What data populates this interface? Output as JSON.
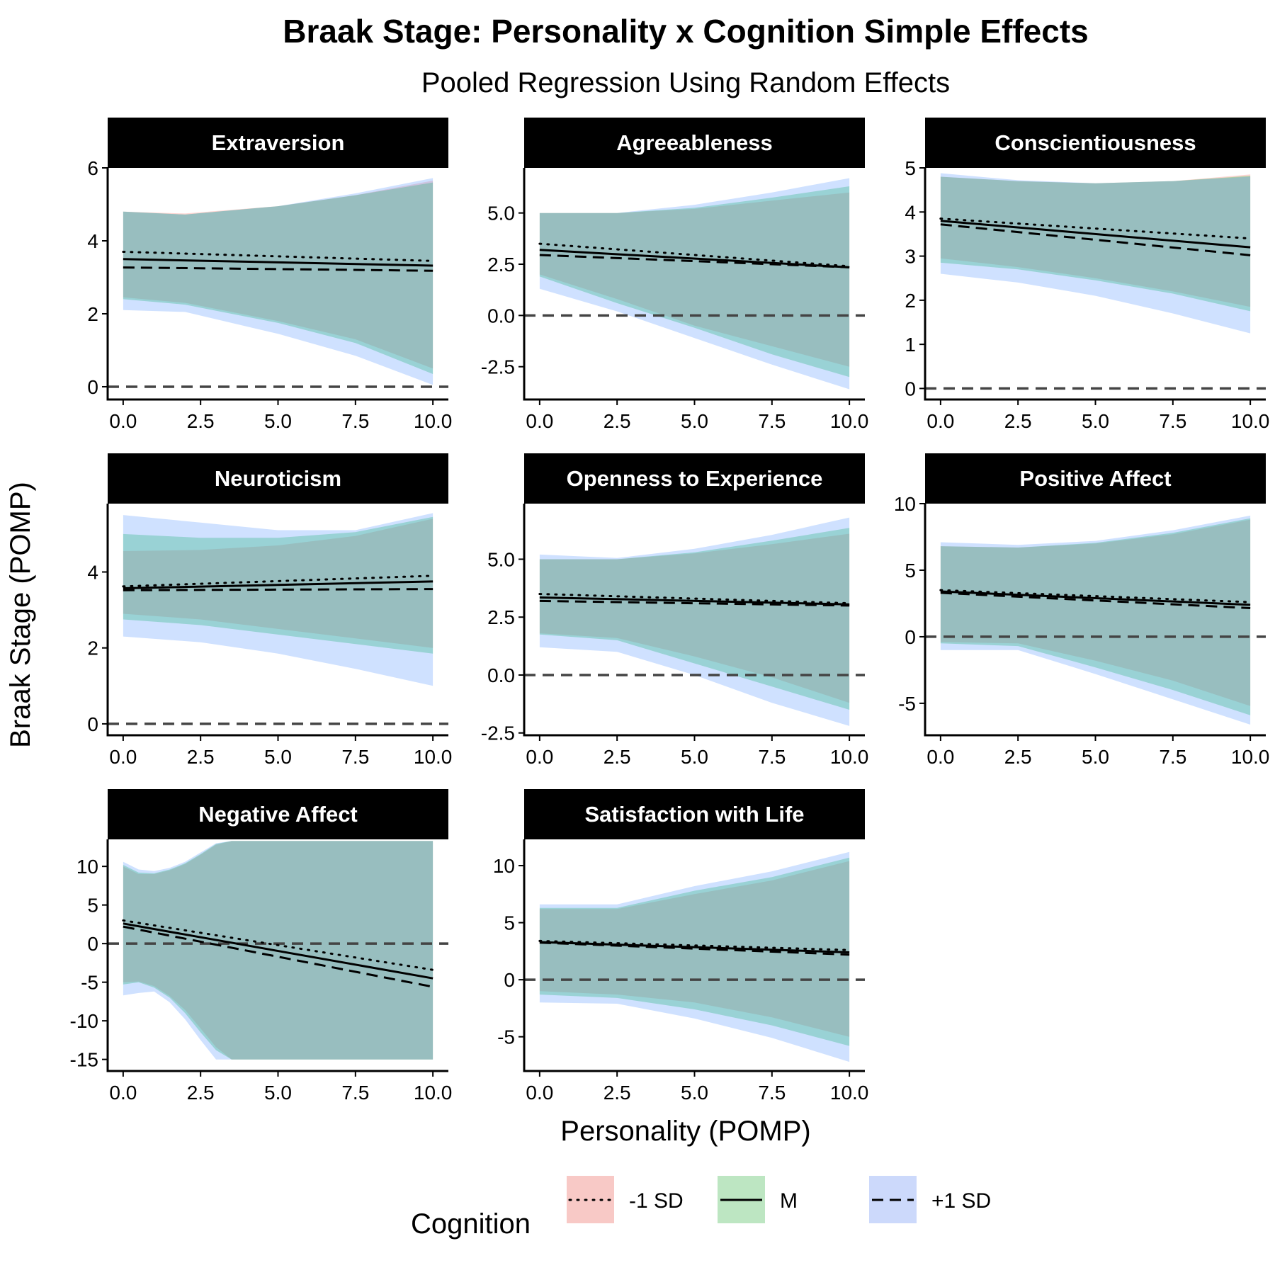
{
  "chart_data": {
    "type": "line",
    "title": "Braak Stage: Personality x Cognition Simple Effects",
    "subtitle": "Pooled Regression Using Random Effects",
    "xlabel": "Personality (POMP)",
    "ylabel": "Braak Stage (POMP)",
    "x_ticks": [
      "0.0",
      "2.5",
      "5.0",
      "7.5",
      "10.0"
    ],
    "x_tick_values": [
      0,
      2.5,
      5,
      7.5,
      10
    ],
    "xlim": [
      -0.5,
      10.5
    ],
    "reference_line_y": 0,
    "legend": {
      "title": "Cognition",
      "position": "bottom",
      "entries": [
        {
          "key": "minus1sd",
          "label": "-1 SD",
          "line": "dotted",
          "fill": "#f8c9c6"
        },
        {
          "key": "mean",
          "label": "M",
          "line": "solid",
          "fill": "#bde6c2"
        },
        {
          "key": "plus1sd",
          "label": "+1 SD",
          "line": "dashed",
          "fill": "#ccd9fb"
        }
      ]
    },
    "band_colors": {
      "minus1sd": "#f8766d",
      "mean": "#00ba38",
      "plus1sd": "#619cff"
    },
    "panels": [
      {
        "name": "Extraversion",
        "ylim": [
          -0.35,
          6.0
        ],
        "y_ticks": [
          "0",
          "2",
          "4",
          "6"
        ],
        "y_tick_values": [
          0,
          2,
          4,
          6
        ],
        "lines": {
          "minus1sd": [
            3.7,
            3.45
          ],
          "mean": [
            3.5,
            3.32
          ],
          "plus1sd": [
            3.27,
            3.18
          ]
        },
        "bands": {
          "minus1sd": {
            "x": [
              0,
              2,
              5,
              7.5,
              10
            ],
            "lower": [
              2.45,
              2.3,
              1.8,
              1.3,
              0.5
            ],
            "upper": [
              4.8,
              4.75,
              4.95,
              5.25,
              5.65
            ]
          },
          "mean": {
            "x": [
              0,
              2,
              5,
              7.5,
              10
            ],
            "lower": [
              2.4,
              2.25,
              1.75,
              1.2,
              0.35
            ],
            "upper": [
              4.8,
              4.72,
              4.95,
              5.25,
              5.6
            ]
          },
          "plus1sd": {
            "x": [
              0,
              2,
              5,
              7.5,
              10
            ],
            "lower": [
              2.1,
              2.05,
              1.45,
              0.85,
              0.05
            ],
            "upper": [
              4.8,
              4.72,
              4.95,
              5.3,
              5.72
            ]
          }
        }
      },
      {
        "name": "Agreeableness",
        "ylim": [
          -4.1,
          7.2
        ],
        "y_ticks": [
          "-2.5",
          "0.0",
          "2.5",
          "5.0"
        ],
        "y_tick_values": [
          -2.5,
          0,
          2.5,
          5
        ],
        "lines": {
          "minus1sd": [
            3.5,
            2.4
          ],
          "mean": [
            3.2,
            2.35
          ],
          "plus1sd": [
            2.95,
            2.35
          ]
        },
        "bands": {
          "minus1sd": {
            "x": [
              0,
              2.5,
              5,
              7.5,
              10
            ],
            "lower": [
              2.0,
              0.8,
              -0.5,
              -1.5,
              -2.5
            ],
            "upper": [
              5.0,
              5.0,
              5.2,
              5.6,
              6.0
            ]
          },
          "mean": {
            "x": [
              0,
              2.5,
              5,
              7.5,
              10
            ],
            "lower": [
              1.9,
              0.6,
              -0.6,
              -1.9,
              -3.0
            ],
            "upper": [
              5.0,
              5.0,
              5.25,
              5.75,
              6.3
            ]
          },
          "plus1sd": {
            "x": [
              0,
              2.5,
              5,
              7.5,
              10
            ],
            "lower": [
              1.3,
              0.2,
              -1.1,
              -2.4,
              -3.6
            ],
            "upper": [
              5.0,
              5.0,
              5.4,
              6.0,
              6.7
            ]
          }
        }
      },
      {
        "name": "Conscientiousness",
        "ylim": [
          -0.25,
          5.0
        ],
        "y_ticks": [
          "0",
          "1",
          "2",
          "3",
          "4",
          "5"
        ],
        "y_tick_values": [
          0,
          1,
          2,
          3,
          4,
          5
        ],
        "lines": {
          "minus1sd": [
            3.85,
            3.4
          ],
          "mean": [
            3.8,
            3.2
          ],
          "plus1sd": [
            3.72,
            3.02
          ]
        },
        "bands": {
          "minus1sd": {
            "x": [
              0,
              2.5,
              5,
              7.5,
              10
            ],
            "lower": [
              2.95,
              2.75,
              2.5,
              2.2,
              1.85
            ],
            "upper": [
              4.8,
              4.7,
              4.65,
              4.7,
              4.85
            ]
          },
          "mean": {
            "x": [
              0,
              2.5,
              5,
              7.5,
              10
            ],
            "lower": [
              2.85,
              2.7,
              2.45,
              2.15,
              1.75
            ],
            "upper": [
              4.8,
              4.7,
              4.65,
              4.7,
              4.82
            ]
          },
          "plus1sd": {
            "x": [
              0,
              2.5,
              5,
              7.5,
              10
            ],
            "lower": [
              2.6,
              2.4,
              2.1,
              1.7,
              1.25
            ],
            "upper": [
              4.88,
              4.72,
              4.65,
              4.7,
              4.8
            ]
          }
        }
      },
      {
        "name": "Neuroticism",
        "ylim": [
          -0.3,
          5.8
        ],
        "y_ticks": [
          "0",
          "2",
          "4"
        ],
        "y_tick_values": [
          0,
          2,
          4
        ],
        "lines": {
          "minus1sd": [
            3.62,
            3.9
          ],
          "mean": [
            3.57,
            3.75
          ],
          "plus1sd": [
            3.52,
            3.55
          ]
        },
        "bands": {
          "minus1sd": {
            "x": [
              0,
              2.5,
              5,
              7.5,
              10
            ],
            "lower": [
              2.9,
              2.75,
              2.5,
              2.25,
              2.0
            ],
            "upper": [
              4.55,
              4.58,
              4.7,
              4.95,
              5.4
            ]
          },
          "mean": {
            "x": [
              0,
              2.5,
              5,
              7.5,
              10
            ],
            "lower": [
              2.75,
              2.6,
              2.35,
              2.1,
              1.85
            ],
            "upper": [
              5.0,
              4.9,
              4.9,
              5.05,
              5.45
            ]
          },
          "plus1sd": {
            "x": [
              0,
              2.5,
              5,
              7.5,
              10
            ],
            "lower": [
              2.3,
              2.15,
              1.85,
              1.45,
              1.0
            ],
            "upper": [
              5.5,
              5.3,
              5.1,
              5.1,
              5.55
            ]
          }
        }
      },
      {
        "name": "Openness to Experience",
        "ylim": [
          -2.6,
          7.4
        ],
        "y_ticks": [
          "-2.5",
          "0.0",
          "2.5",
          "5.0"
        ],
        "y_tick_values": [
          -2.5,
          0,
          2.5,
          5
        ],
        "lines": {
          "minus1sd": [
            3.5,
            3.1
          ],
          "mean": [
            3.35,
            3.05
          ],
          "plus1sd": [
            3.2,
            3.0
          ]
        },
        "bands": {
          "minus1sd": {
            "x": [
              0,
              2.5,
              5,
              7.5,
              10
            ],
            "lower": [
              1.8,
              1.6,
              0.8,
              -0.1,
              -1.2
            ],
            "upper": [
              5.0,
              5.0,
              5.25,
              5.65,
              6.1
            ]
          },
          "mean": {
            "x": [
              0,
              2.5,
              5,
              7.5,
              10
            ],
            "lower": [
              1.75,
              1.5,
              0.5,
              -0.5,
              -1.5
            ],
            "upper": [
              5.0,
              5.0,
              5.3,
              5.8,
              6.35
            ]
          },
          "plus1sd": {
            "x": [
              0,
              2.5,
              5,
              7.5,
              10
            ],
            "lower": [
              1.2,
              1.0,
              0.0,
              -1.2,
              -2.2
            ],
            "upper": [
              5.2,
              5.05,
              5.45,
              6.05,
              6.8
            ]
          }
        }
      },
      {
        "name": "Positive Affect",
        "ylim": [
          -7.4,
          10.0
        ],
        "y_ticks": [
          "-5",
          "0",
          "5",
          "10"
        ],
        "y_tick_values": [
          -5,
          0,
          5,
          10
        ],
        "lines": {
          "minus1sd": [
            3.5,
            2.6
          ],
          "mean": [
            3.4,
            2.4
          ],
          "plus1sd": [
            3.3,
            2.15
          ]
        },
        "bands": {
          "minus1sd": {
            "x": [
              0,
              2.5,
              5,
              7.5,
              10
            ],
            "lower": [
              -0.4,
              -0.5,
              -1.8,
              -3.3,
              -5.2
            ],
            "upper": [
              6.8,
              6.7,
              7.0,
              7.7,
              8.8
            ]
          },
          "mean": {
            "x": [
              0,
              2.5,
              5,
              7.5,
              10
            ],
            "lower": [
              -0.5,
              -0.7,
              -2.3,
              -4.0,
              -5.9
            ],
            "upper": [
              6.8,
              6.7,
              7.05,
              7.8,
              8.9
            ]
          },
          "plus1sd": {
            "x": [
              0,
              2.5,
              5,
              7.5,
              10
            ],
            "lower": [
              -1.0,
              -1.0,
              -2.8,
              -4.7,
              -6.6
            ],
            "upper": [
              7.1,
              6.9,
              7.2,
              8.0,
              9.1
            ]
          }
        }
      },
      {
        "name": "Negative Affect",
        "ylim": [
          -16.5,
          13.5
        ],
        "y_ticks": [
          "-15",
          "-10",
          "-5",
          "0",
          "5",
          "10"
        ],
        "y_tick_values": [
          -15,
          -10,
          -5,
          0,
          5,
          10
        ],
        "lines": {
          "minus1sd": [
            3.0,
            -3.4
          ],
          "mean": [
            2.6,
            -4.5
          ],
          "plus1sd": [
            2.2,
            -5.6
          ]
        },
        "bands": {
          "minus1sd": {
            "x": [
              0,
              0.5,
              1,
              1.5,
              2,
              2.5,
              3,
              3.5,
              4,
              10
            ],
            "lower": [
              -5.0,
              -4.9,
              -5.5,
              -6.8,
              -8.6,
              -11.0,
              -13.4,
              -15.0,
              -15.0,
              -15.0
            ],
            "upper": [
              10.0,
              9.0,
              9.0,
              9.5,
              10.3,
              11.5,
              12.8,
              13.3,
              13.3,
              13.3
            ]
          },
          "mean": {
            "x": [
              0,
              0.5,
              1,
              1.5,
              2,
              2.5,
              3,
              3.5,
              4,
              10
            ],
            "lower": [
              -5.3,
              -5.0,
              -5.7,
              -7.0,
              -9.0,
              -11.5,
              -13.8,
              -15.0,
              -15.0,
              -15.0
            ],
            "upper": [
              10.2,
              9.2,
              9.1,
              9.6,
              10.4,
              11.6,
              12.9,
              13.3,
              13.3,
              13.3
            ]
          },
          "plus1sd": {
            "x": [
              0,
              0.5,
              1,
              1.5,
              2,
              2.5,
              3,
              3.5,
              4,
              10
            ],
            "lower": [
              -6.7,
              -6.4,
              -6.2,
              -7.6,
              -9.8,
              -12.5,
              -15.0,
              -15.0,
              -15.0,
              -15.0
            ],
            "upper": [
              10.6,
              9.6,
              9.4,
              9.8,
              10.6,
              11.8,
              13.0,
              13.3,
              13.3,
              13.3
            ]
          }
        }
      },
      {
        "name": "Satisfaction with Life",
        "ylim": [
          -8.0,
          12.3
        ],
        "y_ticks": [
          "-5",
          "0",
          "5",
          "10"
        ],
        "y_tick_values": [
          -5,
          0,
          5,
          10
        ],
        "lines": {
          "minus1sd": [
            3.4,
            2.6
          ],
          "mean": [
            3.3,
            2.4
          ],
          "plus1sd": [
            3.25,
            2.2
          ]
        },
        "bands": {
          "minus1sd": {
            "x": [
              0,
              2.5,
              5,
              7.5,
              10
            ],
            "lower": [
              -1.0,
              -1.3,
              -2.0,
              -3.3,
              -5.0
            ],
            "upper": [
              6.2,
              6.2,
              7.5,
              8.7,
              10.4
            ]
          },
          "mean": {
            "x": [
              0,
              2.5,
              5,
              7.5,
              10
            ],
            "lower": [
              -1.3,
              -1.6,
              -2.6,
              -4.0,
              -5.8
            ],
            "upper": [
              6.3,
              6.3,
              7.8,
              9.0,
              10.7
            ]
          },
          "plus1sd": {
            "x": [
              0,
              2.5,
              5,
              7.5,
              10
            ],
            "lower": [
              -2.0,
              -2.1,
              -3.4,
              -5.1,
              -7.2
            ],
            "upper": [
              6.6,
              6.6,
              8.2,
              9.5,
              11.2
            ]
          }
        }
      }
    ]
  }
}
